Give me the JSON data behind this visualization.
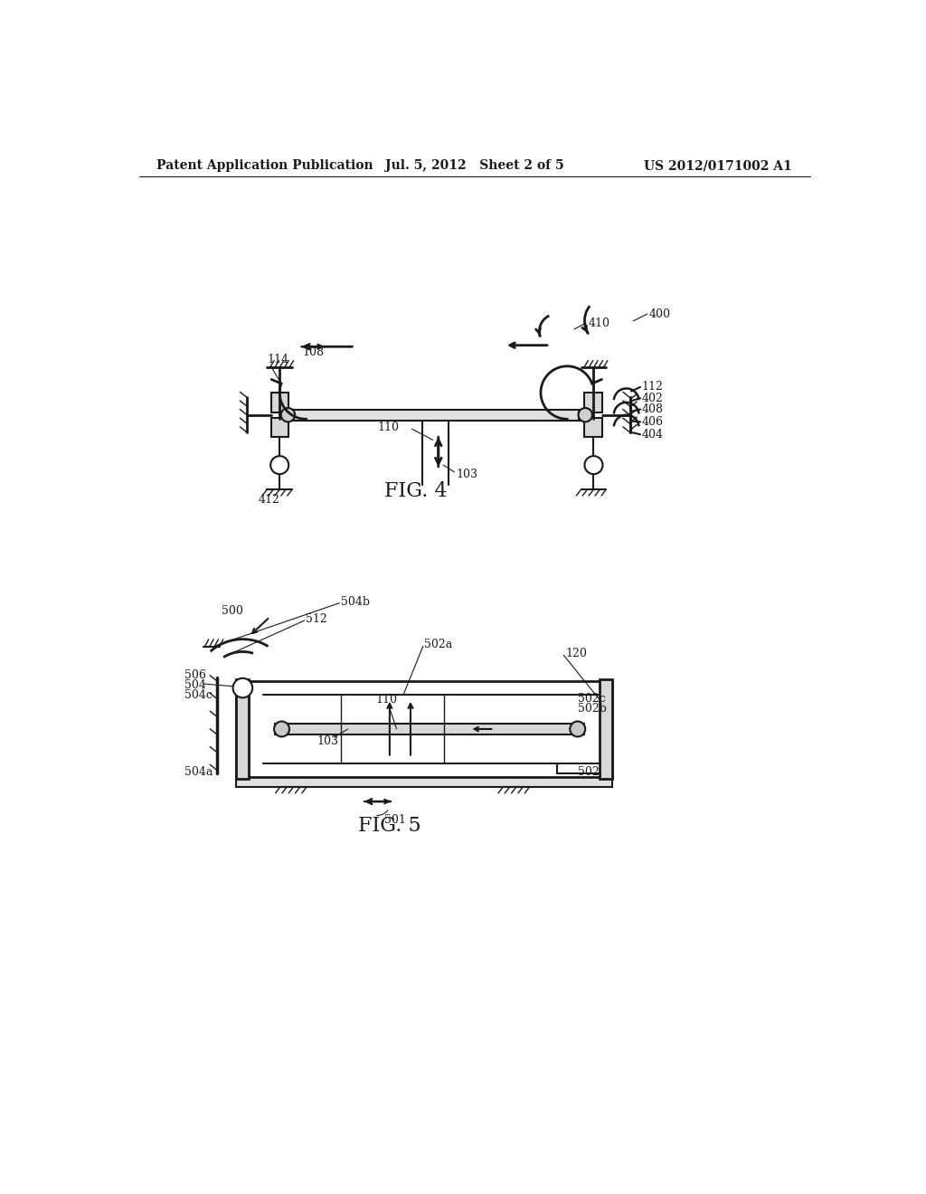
{
  "bg_color": "#ffffff",
  "line_color": "#1a1a1a",
  "header_left": "Patent Application Publication",
  "header_mid": "Jul. 5, 2012   Sheet 2 of 5",
  "header_right": "US 2012/0171002 A1"
}
